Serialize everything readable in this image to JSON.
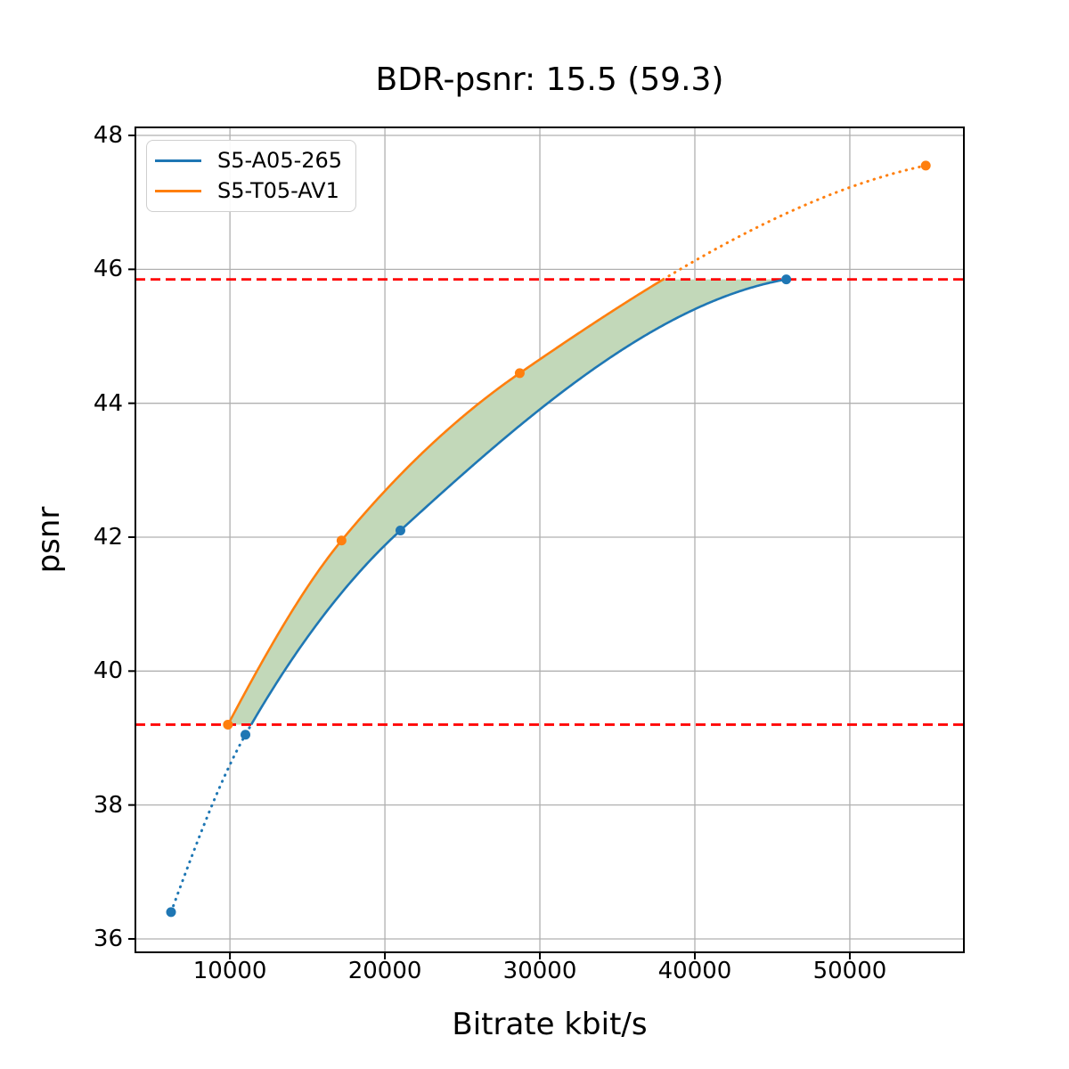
{
  "chart_data": {
    "type": "line",
    "title": "BDR-psnr: 15.5 (59.3)",
    "xlabel": "Bitrate kbit/s",
    "ylabel": "psnr",
    "xlim": [
      3900,
      57360
    ],
    "ylim": [
      35.8,
      48.12
    ],
    "x_ticks": [
      10000,
      20000,
      30000,
      40000,
      50000
    ],
    "x_tick_labels": [
      "10000",
      "20000",
      "30000",
      "40000",
      "50000"
    ],
    "y_ticks": [
      36,
      38,
      40,
      42,
      44,
      46,
      48
    ],
    "y_tick_labels": [
      "36",
      "38",
      "40",
      "42",
      "44",
      "46",
      "48"
    ],
    "grid": true,
    "grid_color": "#b0b0b0",
    "legend_position": "upper left",
    "series": [
      {
        "name": "S5-A05-265",
        "color": "#1f77b4",
        "points": [
          [
            6200,
            36.4
          ],
          [
            11000,
            39.05
          ],
          [
            21000,
            42.1
          ],
          [
            45900,
            45.85
          ]
        ]
      },
      {
        "name": "S5-T05-AV1",
        "color": "#ff7f0e",
        "points": [
          [
            9870,
            39.2
          ],
          [
            17200,
            41.95
          ],
          [
            28700,
            44.45
          ],
          [
            54900,
            47.55
          ]
        ]
      }
    ],
    "overlap_range_psnr": [
      39.2,
      45.85
    ],
    "reference_line_color": "#ff0000",
    "overlap_fill_color": "#c2d8b9"
  }
}
